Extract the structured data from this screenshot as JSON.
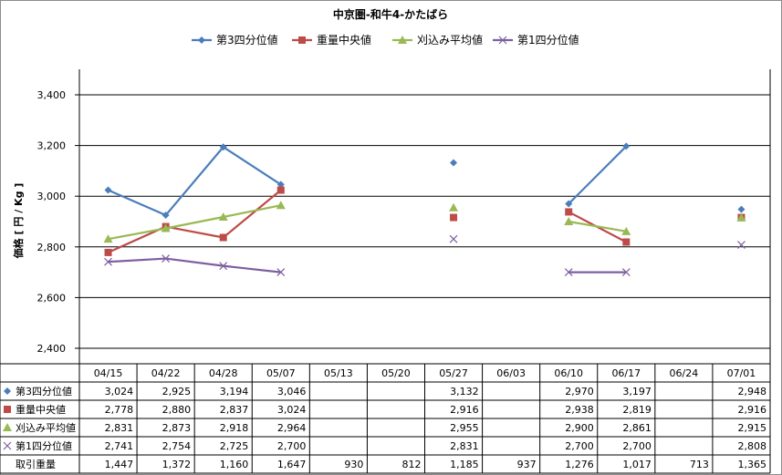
{
  "chart_data": {
    "type": "line",
    "title": "中京圏-和牛4-かたばら",
    "ylabel": "価格 [ 円 / Kg ]",
    "ylim": [
      2400,
      3400
    ],
    "yticks": [
      2400,
      2600,
      2800,
      3000,
      3200,
      3400
    ],
    "ytick_labels": [
      "2,400",
      "2,600",
      "2,800",
      "3,000",
      "3,200",
      "3,400"
    ],
    "grid": true,
    "legend_position": "top",
    "categories": [
      "04/15",
      "04/22",
      "04/28",
      "05/07",
      "05/13",
      "05/20",
      "05/27",
      "06/03",
      "06/10",
      "06/17",
      "06/24",
      "07/01"
    ],
    "series": [
      {
        "name": "第3四分位値",
        "color": "#4a7ebb",
        "marker": "diamond",
        "values": [
          3024,
          2925,
          3194,
          3046,
          null,
          null,
          3132,
          null,
          2970,
          3197,
          null,
          2948
        ],
        "labels": [
          "3,024",
          "2,925",
          "3,194",
          "3,046",
          "",
          "",
          "3,132",
          "",
          "2,970",
          "3,197",
          "",
          "2,948"
        ]
      },
      {
        "name": "重量中央値",
        "color": "#be4b48",
        "marker": "square",
        "values": [
          2778,
          2880,
          2837,
          3024,
          null,
          null,
          2916,
          null,
          2938,
          2819,
          null,
          2916
        ],
        "labels": [
          "2,778",
          "2,880",
          "2,837",
          "3,024",
          "",
          "",
          "2,916",
          "",
          "2,938",
          "2,819",
          "",
          "2,916"
        ]
      },
      {
        "name": "刈込み平均値",
        "color": "#98b954",
        "marker": "triangle",
        "values": [
          2831,
          2873,
          2918,
          2964,
          null,
          null,
          2955,
          null,
          2900,
          2861,
          null,
          2915
        ],
        "labels": [
          "2,831",
          "2,873",
          "2,918",
          "2,964",
          "",
          "",
          "2,955",
          "",
          "2,900",
          "2,861",
          "",
          "2,915"
        ]
      },
      {
        "name": "第1四分位値",
        "color": "#7d5fa0",
        "marker": "x",
        "values": [
          2741,
          2754,
          2725,
          2700,
          null,
          null,
          2831,
          null,
          2700,
          2700,
          null,
          2808
        ],
        "labels": [
          "2,741",
          "2,754",
          "2,725",
          "2,700",
          "",
          "",
          "2,831",
          "",
          "2,700",
          "2,700",
          "",
          "2,808"
        ]
      }
    ],
    "volume": {
      "name": "取引重量",
      "labels": [
        "1,447",
        "1,372",
        "1,160",
        "1,647",
        "930",
        "812",
        "1,185",
        "937",
        "1,276",
        "1,017",
        "713",
        "1,365"
      ]
    }
  }
}
